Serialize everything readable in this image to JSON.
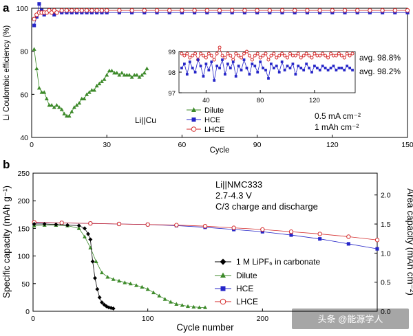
{
  "panel_a": {
    "label": "a",
    "annotation": "Li||Cu",
    "conditions": [
      "0.5 mA cm⁻²",
      "1 mAh cm⁻²"
    ]
  },
  "panel_b": {
    "label": "b",
    "annotation_lines": [
      "Li||NMC333",
      "2.7-4.3 V",
      "C/3 charge and discharge"
    ]
  },
  "watermark": "头条 @能源学人",
  "colors": {
    "black": "#000000",
    "green": "#3d8a2a",
    "blue": "#2525c8",
    "red": "#d42a2a"
  },
  "chart_data": [
    {
      "type": "scatter",
      "title": "",
      "xlabel": "Cycle",
      "ylabel": "Li Coulombic efficiency (%)",
      "xlim": [
        0,
        150
      ],
      "ylim": [
        40,
        100
      ],
      "xticks": [
        "0",
        "30",
        "60",
        "90",
        "120",
        "150"
      ],
      "yticks": [
        "40",
        "60",
        "80",
        "100"
      ],
      "legend_position": "bottom-left",
      "series": [
        {
          "name": "Dilute",
          "marker": "triangle",
          "color": "#3d8a2a",
          "x": [
            1,
            2,
            3,
            4,
            5,
            6,
            7,
            8,
            9,
            10,
            11,
            12,
            13,
            14,
            15,
            16,
            17,
            18,
            19,
            20,
            21,
            22,
            23,
            24,
            25,
            26,
            27,
            28,
            29,
            30,
            31,
            32,
            33,
            34,
            35,
            36,
            37,
            38,
            39,
            40,
            41,
            42,
            43,
            44,
            45,
            46
          ],
          "y": [
            81,
            72,
            63,
            61,
            61,
            58,
            55,
            55,
            54,
            55,
            54,
            53,
            51,
            50,
            50,
            52,
            54,
            55,
            56,
            58,
            58,
            60,
            61,
            62,
            62,
            64,
            65,
            66,
            67,
            69,
            71,
            71,
            70,
            70,
            69,
            70,
            69,
            69,
            69,
            68,
            69,
            69,
            68,
            69,
            70,
            72
          ]
        },
        {
          "name": "HCE",
          "marker": "square",
          "color": "#2525c8",
          "x": [
            1,
            2,
            3,
            4,
            5,
            6,
            7,
            8,
            9,
            10,
            12,
            14,
            16,
            18,
            20,
            22,
            24,
            26,
            28,
            30,
            35,
            40,
            45,
            50,
            55,
            60,
            65,
            70,
            75,
            80,
            85,
            90,
            95,
            100,
            105,
            110,
            115,
            120,
            125,
            130,
            135,
            140,
            145,
            150
          ],
          "y": [
            92,
            96,
            102,
            99,
            97,
            98,
            99,
            98,
            97,
            98,
            98,
            98,
            98,
            98,
            98,
            98,
            98,
            98,
            98,
            98,
            98,
            98,
            98,
            98,
            98,
            98,
            98,
            98,
            98,
            98,
            98,
            98,
            98,
            98,
            98,
            98,
            98,
            98,
            98,
            98,
            98,
            98,
            98,
            98
          ]
        },
        {
          "name": "LHCE",
          "marker": "circle",
          "color": "#d42a2a",
          "x": [
            1,
            2,
            3,
            4,
            5,
            6,
            7,
            8,
            9,
            10,
            12,
            14,
            16,
            18,
            20,
            22,
            24,
            26,
            28,
            30,
            35,
            40,
            45,
            50,
            55,
            60,
            65,
            70,
            75,
            80,
            85,
            90,
            95,
            100,
            105,
            110,
            115,
            120,
            125,
            130,
            135,
            140,
            145,
            150
          ],
          "y": [
            95,
            97,
            98,
            98,
            98,
            98,
            99,
            98,
            99,
            98,
            99,
            99,
            99,
            99,
            99,
            99,
            99,
            99,
            99,
            99,
            99,
            99,
            99,
            99,
            99,
            99,
            99,
            99,
            99,
            99,
            99,
            99,
            99,
            99,
            99,
            99,
            99,
            99,
            99,
            99,
            99,
            99,
            99,
            99
          ]
        }
      ],
      "inset": {
        "xlim": [
          20,
          150
        ],
        "ylim": [
          97,
          99
        ],
        "xticks": [
          "40",
          "80",
          "120"
        ],
        "yticks": [
          "97",
          "98",
          "99"
        ],
        "annotations": [
          "avg. 98.8%",
          "avg. 98.2%"
        ],
        "series": [
          {
            "name": "LHCE",
            "color": "#d42a2a",
            "x": [
              22,
              24,
              26,
              28,
              30,
              32,
              34,
              36,
              38,
              40,
              42,
              44,
              46,
              48,
              50,
              52,
              54,
              56,
              58,
              60,
              62,
              64,
              66,
              68,
              70,
              72,
              74,
              76,
              78,
              80,
              82,
              84,
              86,
              88,
              90,
              92,
              94,
              96,
              98,
              100,
              102,
              104,
              106,
              108,
              110,
              112,
              114,
              116,
              118,
              120,
              122,
              124,
              126,
              128,
              130,
              132,
              134,
              136,
              138,
              140,
              142,
              144,
              146,
              148
            ],
            "y": [
              98.9,
              98.8,
              98.9,
              98.7,
              98.8,
              98.9,
              98.6,
              98.9,
              98.8,
              98.7,
              98.9,
              98.8,
              98.6,
              98.9,
              99.2,
              98.8,
              98.7,
              98.9,
              98.8,
              98.6,
              98.9,
              98.8,
              98.7,
              98.9,
              99.0,
              98.8,
              98.6,
              98.8,
              98.9,
              98.7,
              98.8,
              98.9,
              98.6,
              98.8,
              98.9,
              98.7,
              98.8,
              98.9,
              98.8,
              98.7,
              98.9,
              98.8,
              98.8,
              98.9,
              98.7,
              98.8,
              98.9,
              98.8,
              98.7,
              98.9,
              98.8,
              98.8,
              98.9,
              98.8,
              98.7,
              98.9,
              98.8,
              98.8,
              98.9,
              98.8,
              98.7,
              98.9,
              98.8,
              98.9
            ]
          },
          {
            "name": "HCE",
            "color": "#2525c8",
            "x": [
              22,
              24,
              26,
              28,
              30,
              32,
              34,
              36,
              38,
              40,
              42,
              44,
              46,
              48,
              50,
              52,
              54,
              56,
              58,
              60,
              62,
              64,
              66,
              68,
              70,
              72,
              74,
              76,
              78,
              80,
              82,
              84,
              86,
              88,
              90,
              92,
              94,
              96,
              98,
              100,
              102,
              104,
              106,
              108,
              110,
              112,
              114,
              116,
              118,
              120,
              122,
              124,
              126,
              128,
              130,
              132,
              134,
              136,
              138,
              140,
              142,
              144,
              146,
              148
            ],
            "y": [
              98.2,
              98.4,
              97.9,
              98.5,
              98.2,
              98.0,
              98.6,
              98.3,
              97.8,
              98.4,
              98.1,
              98.5,
              97.6,
              98.3,
              98.2,
              98.6,
              97.9,
              98.4,
              98.2,
              98.5,
              97.8,
              98.3,
              98.1,
              98.6,
              98.2,
              97.9,
              98.4,
              98.3,
              98.0,
              98.5,
              98.2,
              98.1,
              97.7,
              98.4,
              98.2,
              98.3,
              98.0,
              98.5,
              98.1,
              98.3,
              98.2,
              98.4,
              97.9,
              98.3,
              98.2,
              98.1,
              98.4,
              98.2,
              98.0,
              98.3,
              98.2,
              98.1,
              98.3,
              98.2,
              98.1,
              98.2,
              98.3,
              98.1,
              98.2,
              98.2,
              98.1,
              98.3,
              98.2,
              98.1
            ]
          }
        ]
      }
    },
    {
      "type": "scatter",
      "title": "",
      "xlabel": "Cycle number",
      "ylabel": "Specific capacity (mAh g⁻¹)",
      "y2label": "Area capacity (mAh cm⁻²)",
      "xlim": [
        0,
        300
      ],
      "ylim": [
        0,
        250
      ],
      "y2lim": [
        0,
        2.375
      ],
      "xticks": [
        "0",
        "100",
        "200"
      ],
      "yticks": [
        "0",
        "50",
        "100",
        "150",
        "200",
        "250"
      ],
      "y2ticks": [
        "0.0",
        "0.5",
        "1.0",
        "1.5",
        "2.0"
      ],
      "legend_position": "bottom-center",
      "series": [
        {
          "name": "1 M LiPF₆ in carbonate",
          "marker": "diamond",
          "color": "#000000",
          "x": [
            1,
            10,
            20,
            30,
            40,
            45,
            48,
            50,
            52,
            54,
            56,
            58,
            60,
            62,
            64,
            66,
            68,
            70
          ],
          "y": [
            158,
            158,
            157,
            156,
            155,
            150,
            140,
            130,
            90,
            60,
            40,
            25,
            16,
            12,
            9,
            7,
            6,
            5
          ]
        },
        {
          "name": "Dilute",
          "marker": "triangle",
          "color": "#3d8a2a",
          "x": [
            1,
            10,
            20,
            30,
            40,
            45,
            50,
            55,
            60,
            65,
            70,
            75,
            80,
            85,
            90,
            95,
            100,
            105,
            110,
            115,
            120,
            125,
            130,
            135,
            140,
            145,
            150
          ],
          "y": [
            155,
            156,
            156,
            155,
            150,
            135,
            115,
            90,
            70,
            62,
            58,
            55,
            52,
            50,
            47,
            44,
            40,
            34,
            28,
            22,
            17,
            13,
            11,
            9,
            8,
            7,
            7
          ]
        },
        {
          "name": "HCE",
          "marker": "square",
          "color": "#2525c8",
          "x": [
            1,
            25,
            50,
            75,
            100,
            125,
            150,
            175,
            200,
            225,
            250,
            275,
            300
          ],
          "y": [
            160,
            160,
            159,
            158,
            157,
            155,
            152,
            148,
            144,
            138,
            131,
            122,
            113
          ]
        },
        {
          "name": "LHCE",
          "marker": "circle",
          "color": "#d42a2a",
          "x": [
            1,
            25,
            50,
            75,
            100,
            125,
            150,
            175,
            200,
            225,
            250,
            275,
            300
          ],
          "y": [
            161,
            160,
            159,
            158,
            157,
            156,
            154,
            151,
            148,
            144,
            140,
            135,
            129
          ]
        }
      ]
    }
  ]
}
